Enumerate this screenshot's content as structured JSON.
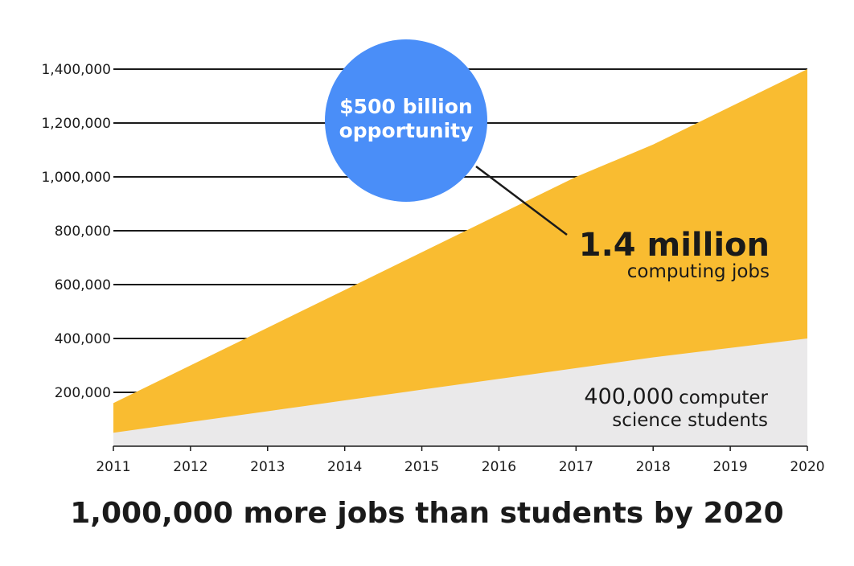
{
  "chart_data": {
    "type": "area",
    "title": "1,000,000 more jobs than students by 2020",
    "x": [
      "2011",
      "2012",
      "2013",
      "2014",
      "2015",
      "2016",
      "2017",
      "2018",
      "2019",
      "2020"
    ],
    "series": [
      {
        "values": [
          160000,
          300000,
          440000,
          580000,
          720000,
          860000,
          1000000,
          1120000,
          1260000,
          1400000
        ],
        "color": "#F9BC31"
      },
      {
        "values": [
          50000,
          90000,
          130000,
          170000,
          210000,
          250000,
          290000,
          330000,
          365000,
          400000
        ],
        "color": "#EAE9EA"
      }
    ],
    "y_ticks": [
      "200,000",
      "400,000",
      "600,000",
      "800,000",
      "1,000,000",
      "1,200,000",
      "1,400,000"
    ],
    "y_tick_values": [
      200000,
      400000,
      600000,
      800000,
      1000000,
      1200000,
      1400000
    ],
    "ylim": [
      0,
      1400000
    ],
    "grid": true,
    "annotations": {
      "bubble_line1": "$500 billion",
      "bubble_line2": "opportunity",
      "bubble_color": "#4A8EF8",
      "jobs_big": "1.4 million",
      "jobs_small": "computing jobs",
      "students_big": "400,000",
      "students_small1": "computer",
      "students_small2": "science students"
    }
  }
}
